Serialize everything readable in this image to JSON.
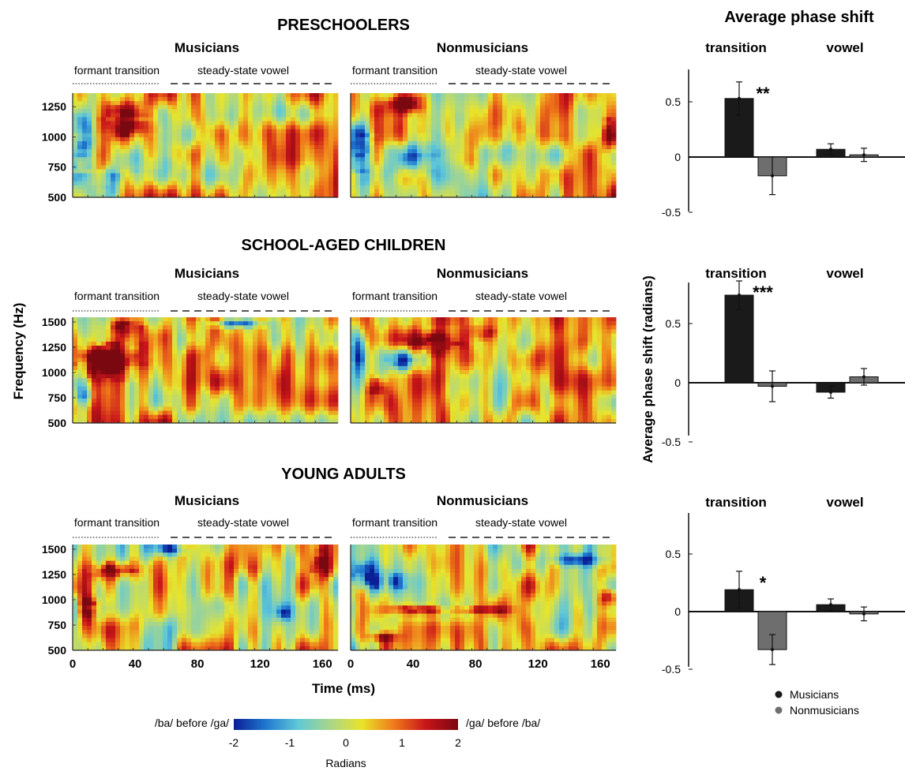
{
  "figure": {
    "row_titles": [
      "PRESCHOOLERS",
      "SCHOOL-AGED CHILDREN",
      "YOUNG ADULTS"
    ],
    "group_labels": [
      "Musicians",
      "Nonmusicians"
    ],
    "segment_labels": {
      "transition": "formant transition",
      "vowel": "steady-state vowel"
    },
    "ylabel": "Frequency (Hz)",
    "xlabel": "Time (ms)",
    "x_ticks": [
      "0",
      "40",
      "80",
      "120",
      "160"
    ],
    "y_ticks_preschool": [
      "500",
      "750",
      "1000",
      "1250"
    ],
    "y_ticks_other": [
      "500",
      "750",
      "1000",
      "1250",
      "1500"
    ],
    "colorbar": {
      "left_label": "/ba/ before /ga/",
      "right_label": "/ga/ before /ba/",
      "ticks": [
        "-2",
        "-1",
        "0",
        "1",
        "2"
      ],
      "title": "Radians",
      "colors": [
        "#0a1e96",
        "#1f78d0",
        "#5fc8d8",
        "#a8d68a",
        "#e8e42a",
        "#f07a1a",
        "#c8141a",
        "#7a0810"
      ]
    },
    "bar_title": "Average phase shift",
    "bar_ylabel": "Average phase shift (radians)",
    "bar_group_labels": [
      "transition",
      "vowel"
    ],
    "bar_y_ticks": [
      "-0.5",
      "0",
      "0.5"
    ],
    "legend": [
      "Musicians",
      "Nonmusicians"
    ]
  },
  "chart_data": [
    {
      "type": "bar",
      "panel": "preschoolers",
      "categories": [
        "transition",
        "vowel"
      ],
      "series": [
        {
          "name": "Musicians",
          "values": [
            0.53,
            0.07
          ],
          "errors": [
            0.15,
            0.05
          ],
          "color": "#1a1a1a"
        },
        {
          "name": "Nonmusicians",
          "values": [
            -0.17,
            0.02
          ],
          "errors": [
            0.17,
            0.06
          ],
          "color": "#6e6e6e"
        }
      ],
      "significance": [
        "**",
        ""
      ],
      "ylim": [
        -0.5,
        0.8
      ]
    },
    {
      "type": "bar",
      "panel": "school-aged children",
      "categories": [
        "transition",
        "vowel"
      ],
      "series": [
        {
          "name": "Musicians",
          "values": [
            0.74,
            -0.08
          ],
          "errors": [
            0.12,
            0.05
          ],
          "color": "#1a1a1a"
        },
        {
          "name": "Nonmusicians",
          "values": [
            -0.03,
            0.05
          ],
          "errors": [
            0.13,
            0.07
          ],
          "color": "#6e6e6e"
        }
      ],
      "significance": [
        "***",
        ""
      ],
      "ylim": [
        -0.5,
        0.8
      ]
    },
    {
      "type": "bar",
      "panel": "young adults",
      "categories": [
        "transition",
        "vowel"
      ],
      "series": [
        {
          "name": "Musicians",
          "values": [
            0.19,
            0.06
          ],
          "errors": [
            0.16,
            0.05
          ],
          "color": "#1a1a1a"
        },
        {
          "name": "Nonmusicians",
          "values": [
            -0.33,
            -0.02
          ],
          "errors": [
            0.13,
            0.06
          ],
          "color": "#6e6e6e"
        }
      ],
      "significance": [
        "*",
        ""
      ],
      "ylim": [
        -0.5,
        0.8
      ]
    }
  ]
}
